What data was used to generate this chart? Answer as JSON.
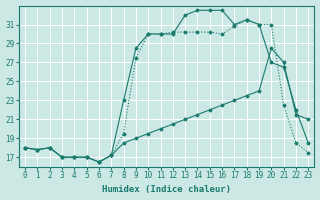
{
  "xlabel": "Humidex (Indice chaleur)",
  "bg_color": "#cce8e4",
  "grid_color": "#ffffff",
  "line_color": "#1a7a6e",
  "xlim": [
    -0.5,
    23.5
  ],
  "ylim": [
    16.0,
    33.0
  ],
  "yticks": [
    17,
    19,
    21,
    23,
    25,
    27,
    29,
    31
  ],
  "xticks": [
    0,
    1,
    2,
    3,
    4,
    5,
    6,
    7,
    8,
    9,
    10,
    11,
    12,
    13,
    14,
    15,
    16,
    17,
    18,
    19,
    20,
    21,
    22,
    23
  ],
  "line_dotted_x": [
    0,
    1,
    2,
    3,
    4,
    5,
    6,
    7,
    8,
    9,
    10,
    11,
    12,
    13,
    14,
    15,
    16,
    17,
    18,
    19,
    20,
    21,
    22,
    23
  ],
  "line_dotted_y": [
    18.0,
    17.8,
    18.0,
    17.0,
    17.0,
    17.0,
    16.5,
    17.2,
    19.5,
    27.5,
    30.0,
    30.0,
    30.2,
    30.2,
    30.2,
    30.2,
    30.0,
    30.8,
    31.5,
    31.0,
    31.0,
    22.5,
    18.5,
    17.5
  ],
  "line_solid_x": [
    0,
    1,
    2,
    3,
    4,
    5,
    6,
    7,
    8,
    9,
    10,
    11,
    12,
    13,
    14,
    15,
    16,
    17,
    18,
    19,
    20,
    21,
    22,
    23
  ],
  "line_solid_y": [
    18.0,
    17.8,
    18.0,
    17.0,
    17.0,
    17.0,
    16.5,
    17.2,
    23.0,
    28.5,
    30.0,
    30.0,
    30.0,
    32.0,
    32.5,
    32.5,
    32.5,
    31.0,
    31.5,
    31.0,
    27.0,
    26.5,
    22.0,
    18.5
  ],
  "line_flat_x": [
    0,
    1,
    2,
    3,
    4,
    5,
    6,
    7,
    8,
    9,
    10,
    11,
    12,
    13,
    14,
    15,
    16,
    17,
    18,
    19,
    20,
    21,
    22,
    23
  ],
  "line_flat_y": [
    18.0,
    17.8,
    18.0,
    17.0,
    17.0,
    17.0,
    16.5,
    17.2,
    18.5,
    19.0,
    19.5,
    20.0,
    20.5,
    21.0,
    21.5,
    22.0,
    22.5,
    23.0,
    23.5,
    24.0,
    28.5,
    27.0,
    21.5,
    21.0
  ]
}
